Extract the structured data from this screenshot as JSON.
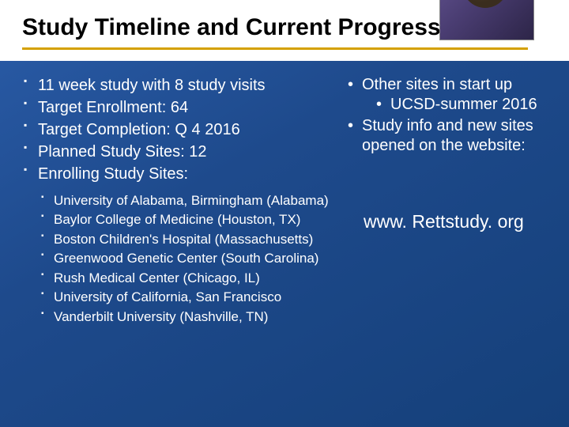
{
  "title": "Study Timeline and Current Progress",
  "left": {
    "items": [
      "11 week study with 8 study visits",
      "Target Enrollment: 64",
      "Target Completion: Q 4 2016",
      "Planned Study Sites: 12",
      "Enrolling Study Sites:"
    ],
    "sub": [
      "University of Alabama, Birmingham (Alabama)",
      "Baylor College of Medicine (Houston, TX)",
      "Boston Children's Hospital (Massachusetts)",
      "Greenwood Genetic Center (South Carolina)",
      "Rush Medical Center (Chicago, IL)",
      "University of California, San Francisco",
      "Vanderbilt University (Nashville, TN)"
    ]
  },
  "right": {
    "item1": "Other sites in start up",
    "sub1": "UCSD-summer 2016",
    "item2": "Study info and new sites opened on the website:"
  },
  "url": "www. Rettstudy. org",
  "colors": {
    "bg_grad_start": "#2a5ca8",
    "bg_grad_end": "#15407a",
    "title_bg": "#ffffff",
    "title_color": "#000000",
    "underline": "#d4a000",
    "text": "#ffffff"
  },
  "fonts": {
    "title_size": 30,
    "main_size": 20,
    "sub_size": 17,
    "url_size": 23
  }
}
